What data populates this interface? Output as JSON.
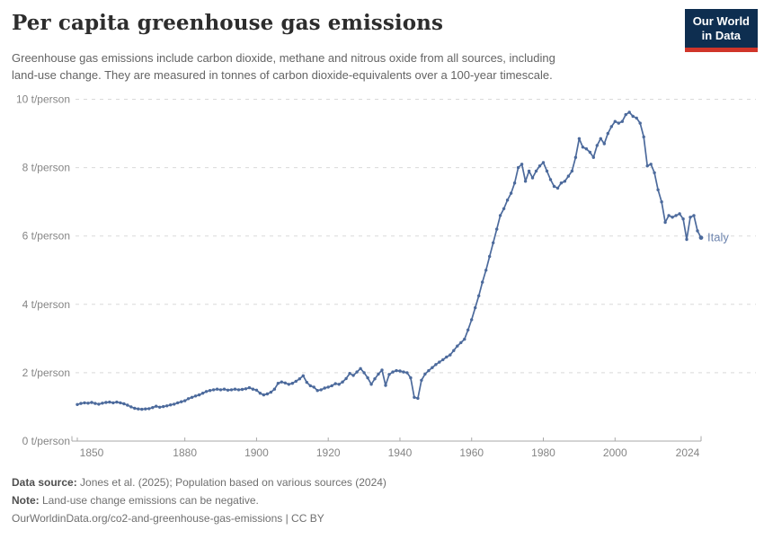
{
  "header": {
    "title": "Per capita greenhouse gas emissions",
    "subtitle": "Greenhouse gas emissions include carbon dioxide, methane and nitrous oxide from all sources, including land-use change. They are measured in tonnes of carbon dioxide-equivalents over a 100-year timescale.",
    "logo": {
      "line1": "Our World",
      "line2": "in Data"
    }
  },
  "chart_data": {
    "type": "line",
    "title": "Per capita greenhouse gas emissions",
    "xlabel": "",
    "ylabel": "",
    "y_unit": "t/person",
    "xlim": [
      1850,
      2024
    ],
    "ylim": [
      0,
      10
    ],
    "x_ticks": [
      1850,
      1880,
      1900,
      1920,
      1940,
      1960,
      1980,
      2000,
      2024
    ],
    "y_ticks": [
      0,
      2,
      4,
      6,
      8,
      10
    ],
    "grid": "horizontal-dashed",
    "legend_position": "end-of-line-label",
    "entity_label_color": "#6d84ae",
    "series": [
      {
        "name": "Italy",
        "color": "#4c6a9c",
        "x_start": 1850,
        "x_step": 1,
        "values": [
          1.07,
          1.1,
          1.12,
          1.11,
          1.13,
          1.1,
          1.08,
          1.11,
          1.13,
          1.14,
          1.12,
          1.14,
          1.12,
          1.09,
          1.05,
          1.0,
          0.96,
          0.94,
          0.93,
          0.94,
          0.95,
          0.98,
          1.02,
          0.99,
          1.01,
          1.03,
          1.06,
          1.08,
          1.12,
          1.15,
          1.18,
          1.24,
          1.28,
          1.32,
          1.35,
          1.4,
          1.45,
          1.48,
          1.5,
          1.52,
          1.5,
          1.52,
          1.49,
          1.5,
          1.52,
          1.5,
          1.51,
          1.53,
          1.56,
          1.52,
          1.49,
          1.4,
          1.35,
          1.38,
          1.43,
          1.52,
          1.69,
          1.73,
          1.7,
          1.66,
          1.69,
          1.75,
          1.82,
          1.91,
          1.72,
          1.62,
          1.58,
          1.48,
          1.5,
          1.55,
          1.58,
          1.62,
          1.68,
          1.66,
          1.73,
          1.83,
          1.98,
          1.92,
          2.02,
          2.12,
          2.0,
          1.85,
          1.66,
          1.82,
          1.96,
          2.08,
          1.63,
          1.95,
          2.02,
          2.06,
          2.05,
          2.02,
          2.0,
          1.85,
          1.28,
          1.25,
          1.78,
          1.96,
          2.06,
          2.15,
          2.24,
          2.31,
          2.38,
          2.46,
          2.52,
          2.65,
          2.78,
          2.88,
          2.98,
          3.25,
          3.55,
          3.9,
          4.25,
          4.65,
          5.0,
          5.4,
          5.8,
          6.2,
          6.6,
          6.8,
          7.05,
          7.25,
          7.55,
          8.0,
          8.1,
          7.6,
          7.9,
          7.7,
          7.9,
          8.05,
          8.15,
          7.9,
          7.65,
          7.45,
          7.4,
          7.55,
          7.6,
          7.75,
          7.9,
          8.3,
          8.85,
          8.6,
          8.55,
          8.45,
          8.3,
          8.65,
          8.85,
          8.7,
          9.0,
          9.2,
          9.35,
          9.3,
          9.35,
          9.55,
          9.62,
          9.5,
          9.45,
          9.3,
          8.9,
          8.05,
          8.1,
          7.85,
          7.35,
          7.0,
          6.4,
          6.6,
          6.55,
          6.6,
          6.65,
          6.5,
          5.9,
          6.55,
          6.6,
          6.15,
          5.95
        ]
      }
    ]
  },
  "footer": {
    "datasource_label": "Data source:",
    "datasource_text": " Jones et al. (2025); Population based on various sources (2024)",
    "note_label": "Note:",
    "note_text": " Land-use change emissions can be negative.",
    "url_line": "OurWorldinData.org/co2-and-greenhouse-gas-emissions | CC BY"
  }
}
